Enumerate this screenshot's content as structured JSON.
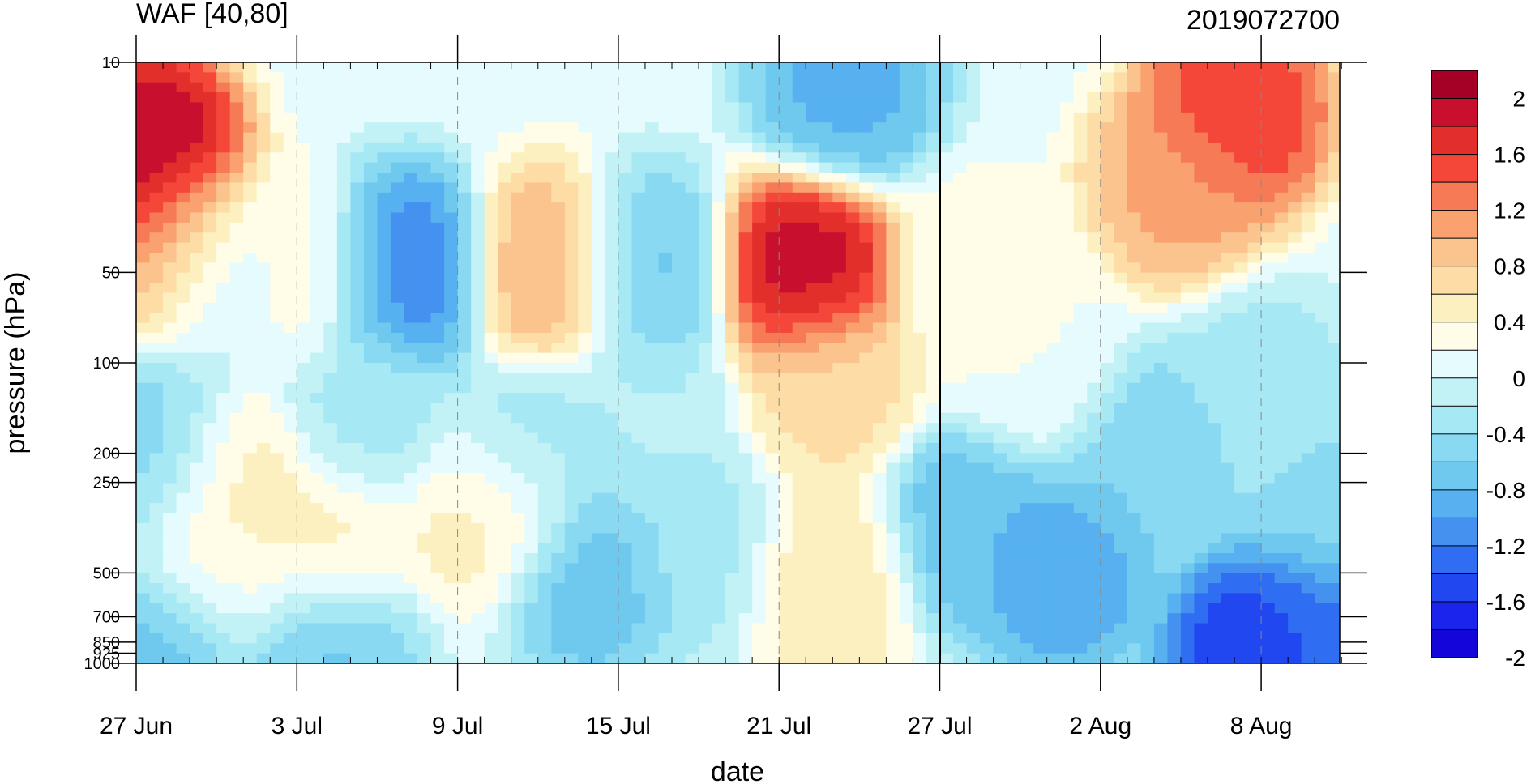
{
  "chart_data": {
    "type": "heatmap",
    "title_left": "WAF [40,80]",
    "title_right": "2019072700",
    "xlabel": "date",
    "ylabel": "pressure (hPa)",
    "x_ticks": [
      "27 Jun",
      "3 Jul",
      "9 Jul",
      "15 Jul",
      "21 Jul",
      "27 Jul",
      "2 Aug",
      "8 Aug"
    ],
    "x_tick_day_offsets": [
      0,
      6,
      12,
      18,
      24,
      30,
      36,
      42
    ],
    "x_range_days": [
      0,
      45
    ],
    "y_ticks": [
      "10",
      "50",
      "100",
      "200",
      "250",
      "500",
      "700",
      "850",
      "925",
      "1000"
    ],
    "y_tick_values": [
      10,
      50,
      100,
      200,
      250,
      500,
      700,
      850,
      925,
      1000
    ],
    "y_range": [
      10,
      1000
    ],
    "y_scale": "log",
    "marker_date": "27 Jul",
    "colorbar": {
      "labels": [
        "2",
        "1.6",
        "1.2",
        "0.8",
        "0.4",
        "0",
        "-0.4",
        "-0.8",
        "-1.2",
        "-1.6",
        "-2"
      ],
      "label_values": [
        2,
        1.6,
        1.2,
        0.8,
        0.4,
        0,
        -0.4,
        -0.8,
        -1.2,
        -1.6,
        -2
      ],
      "colors": [
        "#a50026",
        "#c8102e",
        "#e32f2b",
        "#f4473a",
        "#f67a55",
        "#f9a16f",
        "#fbc48f",
        "#fddca6",
        "#fdf0c0",
        "#fffde8",
        "#e6fbfd",
        "#c2f1f6",
        "#a6e8f4",
        "#8ad9f2",
        "#6fc9ef",
        "#57b1f0",
        "#4491f0",
        "#2f6ef2",
        "#2148f0",
        "#1a24ec",
        "#1405d8"
      ]
    },
    "features": [
      {
        "day": 0.5,
        "p": 20,
        "v": 2.0
      },
      {
        "day": 1.5,
        "p": 40,
        "v": 1.3
      },
      {
        "day": 1.0,
        "p": 200,
        "v": -0.7
      },
      {
        "day": 1.0,
        "p": 900,
        "v": -0.9
      },
      {
        "day": 3.0,
        "p": 50,
        "v": -0.4
      },
      {
        "day": 3.5,
        "p": 250,
        "v": 0.5
      },
      {
        "day": 3.0,
        "p": 500,
        "v": 0.2
      },
      {
        "day": 6.0,
        "p": 50,
        "v": 0.3
      },
      {
        "day": 7.0,
        "p": 400,
        "v": 0.4
      },
      {
        "day": 8.5,
        "p": 150,
        "v": -0.4
      },
      {
        "day": 10.0,
        "p": 50,
        "v": -1.3
      },
      {
        "day": 7.0,
        "p": 900,
        "v": -0.8
      },
      {
        "day": 13.5,
        "p": 300,
        "v": 0.5
      },
      {
        "day": 15.5,
        "p": 50,
        "v": 1.0
      },
      {
        "day": 14.5,
        "p": 200,
        "v": -0.5
      },
      {
        "day": 17.0,
        "p": 500,
        "v": -0.9
      },
      {
        "day": 19.0,
        "p": 50,
        "v": -0.8
      },
      {
        "day": 19.0,
        "p": 150,
        "v": -0.3
      },
      {
        "day": 25.0,
        "p": 50,
        "v": 1.9
      },
      {
        "day": 26.0,
        "p": 120,
        "v": 0.6
      },
      {
        "day": 26.5,
        "p": 12,
        "v": -1.0
      },
      {
        "day": 26.0,
        "p": 500,
        "v": 0.5
      },
      {
        "day": 21.0,
        "p": 400,
        "v": -0.4
      },
      {
        "day": 31.0,
        "p": 350,
        "v": -0.9
      },
      {
        "day": 31.5,
        "p": 50,
        "v": 0.2
      },
      {
        "day": 33.5,
        "p": 100,
        "v": 0.1
      },
      {
        "day": 34.5,
        "p": 500,
        "v": -1.1
      },
      {
        "day": 38.0,
        "p": 200,
        "v": -0.7
      },
      {
        "day": 41.0,
        "p": 15,
        "v": 1.6
      },
      {
        "day": 39.0,
        "p": 25,
        "v": 1.0
      },
      {
        "day": 42.0,
        "p": 120,
        "v": -0.4
      },
      {
        "day": 42.0,
        "p": 950,
        "v": -1.8
      },
      {
        "day": 44.0,
        "p": 800,
        "v": -1.4
      },
      {
        "day": 44.5,
        "p": 300,
        "v": -0.6
      }
    ]
  }
}
